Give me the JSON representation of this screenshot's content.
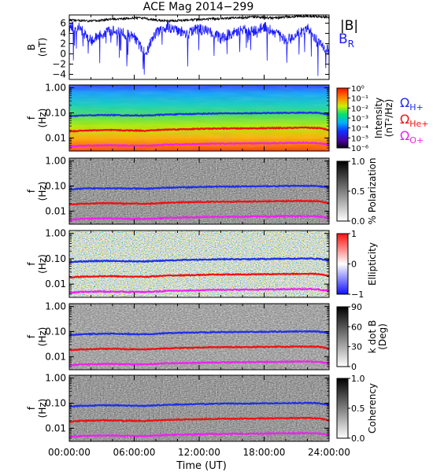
{
  "title": "ACE Mag 2014−299",
  "colors": {
    "br": "#1a1aff",
    "b_total": "#000000",
    "omega_h": "#1f2fe6",
    "omega_he": "#ee1111",
    "omega_o": "#ee22ee"
  },
  "legend": {
    "b_label": "|B|",
    "br_label": "B",
    "br_sub": "R",
    "omega_h": "Ω",
    "omega_h_sub": "H+",
    "omega_he": "Ω",
    "omega_he_sub": "He+",
    "omega_o": "Ω",
    "omega_o_sub": "O+"
  },
  "x_axis": {
    "label": "Time (UT)",
    "ticks": [
      "00:00:00",
      "06:00:00",
      "12:00:00",
      "18:00:00",
      "24:00:00"
    ]
  },
  "panels": [
    {
      "id": "bfield",
      "ylabel": "B",
      "yunit": "(nT)",
      "yticks": [
        "6",
        "4",
        "2",
        "0",
        "−2",
        "−4"
      ],
      "kind": "line"
    },
    {
      "id": "intensity",
      "ylabel": "f",
      "yunit": "(Hz)",
      "yticks": [
        "1.00",
        "0.10",
        "0.01"
      ],
      "colorbar_label": "Intensity",
      "colorbar_unit": "(nT²/Hz)",
      "colorbar_ticks": [
        "10⁰",
        "10⁻¹",
        "10⁻²",
        "10⁻³",
        "10⁻⁴",
        "10⁻⁵",
        "10⁻⁶"
      ],
      "kind": "spectrogram"
    },
    {
      "id": "polarization",
      "ylabel": "f",
      "yunit": "(Hz)",
      "yticks": [
        "1.00",
        "0.10",
        "0.01"
      ],
      "colorbar_label": "% Polarization",
      "colorbar_ticks": [
        "1.0",
        "0.5",
        "0.0"
      ],
      "kind": "grey"
    },
    {
      "id": "ellipticity",
      "ylabel": "f",
      "yunit": "(Hz)",
      "yticks": [
        "1.00",
        "0.10",
        "0.01"
      ],
      "colorbar_label": "Ellipticity",
      "colorbar_ticks": [
        "1",
        "0",
        "−1"
      ],
      "kind": "redblue"
    },
    {
      "id": "kdotb",
      "ylabel": "f",
      "yunit": "(Hz)",
      "yticks": [
        "1.00",
        "0.10",
        "0.01"
      ],
      "colorbar_label": "k dot B",
      "colorbar_unit": "(Deg)",
      "colorbar_ticks": [
        "90",
        "60",
        "30",
        "0"
      ],
      "kind": "grey"
    },
    {
      "id": "coherency",
      "ylabel": "f",
      "yunit": "(Hz)",
      "yticks": [
        "1.00",
        "0.10",
        "0.01"
      ],
      "colorbar_label": "Coherency",
      "colorbar_ticks": [
        "1.0",
        "0.5",
        "0.0"
      ],
      "kind": "grey"
    }
  ],
  "chart_data": {
    "type": "line",
    "title": "ACE Mag 2014−299",
    "xlabel": "Time (UT)",
    "x_hours": [
      0,
      1,
      2,
      3,
      4,
      5,
      6,
      7,
      8,
      9,
      10,
      11,
      12,
      13,
      14,
      15,
      16,
      17,
      18,
      19,
      20,
      21,
      22,
      23,
      24
    ],
    "series": [
      {
        "name": "|B|",
        "values": [
          6.6,
          6.5,
          6.4,
          6.6,
          6.8,
          6.9,
          7.0,
          6.9,
          6.6,
          6.4,
          6.5,
          6.6,
          6.7,
          6.8,
          6.9,
          7.0,
          7.1,
          7.2,
          7.1,
          7.0,
          7.2,
          7.3,
          7.4,
          7.3,
          7.2
        ]
      },
      {
        "name": "BR",
        "values": [
          5.4,
          5.0,
          2.5,
          3.8,
          4.6,
          4.0,
          3.2,
          0.0,
          4.2,
          5.3,
          4.6,
          3.9,
          5.0,
          4.3,
          3.0,
          4.1,
          4.6,
          4.4,
          5.3,
          4.2,
          2.4,
          3.8,
          4.9,
          2.2,
          0.5
        ]
      },
      {
        "name": "ΩH+",
        "values": [
          0.072,
          0.078,
          0.08,
          0.082,
          0.082,
          0.08,
          0.079,
          0.078,
          0.082,
          0.086,
          0.088,
          0.09,
          0.092,
          0.094,
          0.095,
          0.096,
          0.096,
          0.097,
          0.098,
          0.099,
          0.1,
          0.101,
          0.102,
          0.1,
          0.085
        ]
      },
      {
        "name": "ΩHe+",
        "values": [
          0.018,
          0.0195,
          0.02,
          0.0205,
          0.0205,
          0.02,
          0.0198,
          0.0195,
          0.0205,
          0.0215,
          0.022,
          0.0225,
          0.023,
          0.0235,
          0.0238,
          0.024,
          0.024,
          0.0243,
          0.0245,
          0.0248,
          0.025,
          0.0253,
          0.0255,
          0.025,
          0.021
        ]
      },
      {
        "name": "ΩO+",
        "values": [
          0.0045,
          0.0049,
          0.005,
          0.0051,
          0.0051,
          0.005,
          0.0049,
          0.0049,
          0.0051,
          0.0054,
          0.0055,
          0.0056,
          0.0057,
          0.0059,
          0.0059,
          0.006,
          0.006,
          0.0061,
          0.0061,
          0.0062,
          0.0063,
          0.0063,
          0.0064,
          0.0062,
          0.0053
        ]
      }
    ],
    "b_ylim": [
      -5,
      7.6
    ],
    "f_ylim": [
      0.003,
      1.3
    ],
    "xlim": [
      0,
      24
    ]
  }
}
